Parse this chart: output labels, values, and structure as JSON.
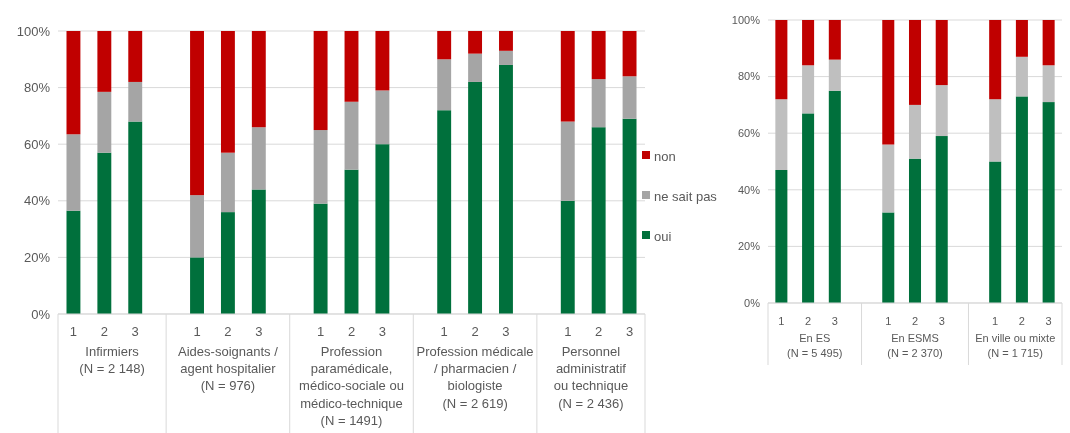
{
  "chart_data": [
    {
      "type": "bar",
      "stacked": true,
      "legend": "right",
      "grid": "y",
      "categories": [
        "1",
        "2",
        "3",
        null,
        "1",
        "2",
        "3",
        null,
        "1",
        "2",
        "3",
        null,
        "1",
        "2",
        "3",
        null,
        "1",
        "2",
        "3"
      ],
      "series": [
        {
          "name": "oui",
          "color": "#00703c",
          "values": [
            36.5,
            57,
            68,
            null,
            20,
            36,
            44,
            null,
            39,
            51,
            60,
            null,
            72,
            82,
            88,
            null,
            40,
            66,
            69
          ]
        },
        {
          "name": "ne sait pas",
          "color": "#a5a5a5",
          "values": [
            27,
            21.5,
            14,
            null,
            22,
            21,
            22,
            null,
            26,
            24,
            19,
            null,
            18,
            10,
            5,
            null,
            28,
            17,
            15
          ]
        },
        {
          "name": "non",
          "color": "#c00000",
          "values": [
            36.5,
            21.5,
            18,
            null,
            58,
            43,
            34,
            null,
            35,
            25,
            21,
            null,
            10,
            8,
            7,
            null,
            32,
            17,
            16
          ]
        }
      ],
      "ylim": [
        0,
        100
      ],
      "yticks": [
        {
          "value": 0,
          "label": "0%"
        },
        {
          "value": 20,
          "label": "20%"
        },
        {
          "value": 40,
          "label": "40%"
        },
        {
          "value": 60,
          "label": "60%"
        },
        {
          "value": 80,
          "label": "80%"
        },
        {
          "value": 100,
          "label": "100%"
        }
      ],
      "annotations": [
        "Infirmiers\n(N = 2 148)",
        "Aides-soignants /\nagent hospitalier\n(N  = 976)",
        "Profession\nparamédicale,\nmédico-sociale ou\nmédico-technique\n(N = 1491)",
        "Profession médicale\n/ pharmacien /\nbiologiste\n(N = 2 619)",
        "Personnel\nadministratif\nou technique\n(N = 2 436)"
      ]
    },
    {
      "type": "bar",
      "stacked": true,
      "grid": "y",
      "categories": [
        "1",
        "2",
        "3",
        null,
        "1",
        "2",
        "3",
        null,
        "1",
        "2",
        "3"
      ],
      "series": [
        {
          "color": "#00703c",
          "values": [
            47,
            67,
            75,
            null,
            32,
            51,
            59,
            null,
            50,
            73,
            71
          ]
        },
        {
          "color": "#bfbfbf",
          "values": [
            25,
            17,
            11,
            null,
            24,
            19,
            18,
            null,
            22,
            14,
            13
          ]
        },
        {
          "color": "#c00000",
          "values": [
            28,
            16,
            14,
            null,
            44,
            30,
            23,
            null,
            28,
            13,
            16
          ]
        }
      ],
      "ylim": [
        0,
        100
      ],
      "yticks": [
        {
          "value": 0,
          "label": "0%"
        },
        {
          "value": 20,
          "label": "20%"
        },
        {
          "value": 40,
          "label": "40%"
        },
        {
          "value": 60,
          "label": "60%"
        },
        {
          "value": 80,
          "label": "80%"
        },
        {
          "value": 100,
          "label": "100%"
        }
      ],
      "annotations": [
        "En ES\n(N = 5 495)",
        "En ESMS\n(N = 2 370)",
        "En ville ou mixte\n(N = 1 715)"
      ]
    }
  ]
}
